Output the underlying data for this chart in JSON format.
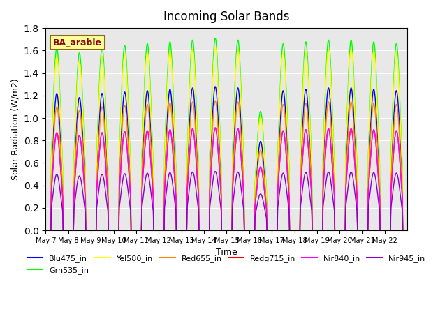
{
  "title": "Incoming Solar Bands",
  "xlabel": "Time",
  "ylabel": "Solar Radiation (W/m2)",
  "site_label": "BA_arable",
  "ylim": [
    0,
    1.8
  ],
  "legend_entries": [
    "Blu475_in",
    "Grn535_in",
    "Yel580_in",
    "Red655_in",
    "Redg715_in",
    "Nir840_in",
    "Nir945_in"
  ],
  "line_colors": [
    "#0000ff",
    "#00ff00",
    "#ffff00",
    "#ff8800",
    "#ff0000",
    "#ff00ff",
    "#8800cc"
  ],
  "background_color": "#e8e8e8",
  "n_days": 16,
  "start_day": 7,
  "peak_heights": {
    "Blu475_in": 1.22,
    "Grn535_in": 1.63,
    "Yel580_in": 1.55,
    "Red655_in": 1.1,
    "Redg715_in": 0.87,
    "Nir840_in": 0.87,
    "Nir945_in": 0.5
  },
  "peak_scale": [
    1.0,
    0.97,
    1.0,
    1.01,
    1.02,
    1.03,
    1.04,
    1.05,
    1.04,
    0.65,
    1.02,
    1.03,
    1.04,
    1.04,
    1.03,
    1.02
  ],
  "x_tick_labels": [
    "May 7",
    "May 8",
    "May 9",
    "May 10",
    "May 11",
    "May 12",
    "May 13",
    "May 14",
    "May 15",
    "May 16",
    "May 17",
    "May 18",
    "May 19",
    "May 20",
    "May 21",
    "May 22"
  ],
  "x_tick_positions": [
    6,
    7,
    8,
    9,
    10,
    11,
    12,
    13,
    14,
    15,
    16,
    17,
    18,
    19,
    20,
    21
  ]
}
